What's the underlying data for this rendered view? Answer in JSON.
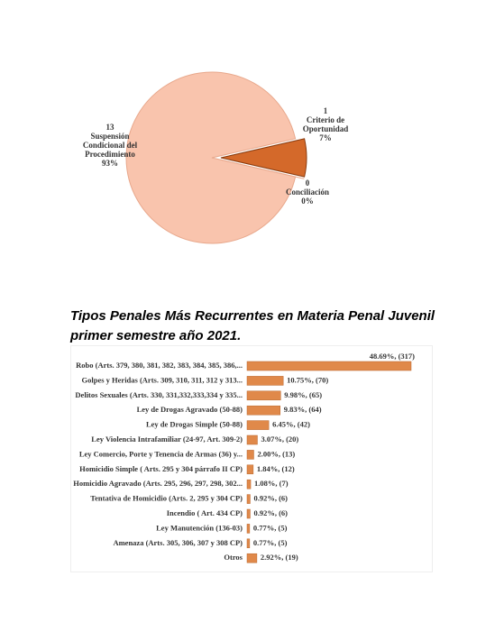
{
  "charts": [
    {
      "type": "pie",
      "categories": [
        "Suspensión Condicional del Procedimiento",
        "Criterio de Oportunidad",
        "Conciliación"
      ],
      "values": [
        13,
        1,
        0
      ],
      "percent_labels": [
        "93%",
        "7%",
        "0%"
      ],
      "colors": [
        "#f9c4ad",
        "#d4692a",
        "#b0b0b0"
      ]
    },
    {
      "type": "bar",
      "orientation": "horizontal",
      "title": "Tipos Penales Más Recurrentes en Materia Penal Juvenil primer semestre año 2021.",
      "categories": [
        "Robo (Arts. 379, 380, 381, 382, 383, 384, 385, 386,...",
        "Golpes y Heridas (Arts. 309, 310, 311, 312 y 313...",
        "Delitos Sexuales (Arts. 330, 331,332,333,334 y 335...",
        "Ley de Drogas Agravado (50-88)",
        "Ley de Drogas Simple (50-88)",
        "Ley Violencia Intrafamiliar (24-97, Art. 309-2)",
        "Ley Comercio, Porte y Tenencia de Armas (36) y...",
        "Homicidio Simple ( Arts. 295 y 304 párrafo II CP)",
        "Homicidio Agravado (Arts. 295, 296, 297, 298, 302...",
        "Tentativa de Homicidio (Arts. 2, 295 y 304 CP)",
        "Incendio ( Art. 434 CP)",
        "Ley Manutención (136-03)",
        "Amenaza (Arts. 305, 306, 307 y 308 CP)",
        "Otros"
      ],
      "values": [
        48.69,
        10.75,
        9.98,
        9.83,
        6.45,
        3.07,
        2.0,
        1.84,
        1.08,
        0.92,
        0.92,
        0.77,
        0.77,
        2.92
      ],
      "value_labels": [
        "48.69%, (317)",
        "10.75%, (70)",
        "9.98%, (65)",
        "9.83%, (64)",
        "6.45%, (42)",
        "3.07%, (20)",
        "2.00%, (13)",
        "1.84%, (12)",
        "1.08%, (7)",
        "0.92%, (6)",
        "0.92%, (6)",
        "0.77%, (5)",
        "0.77%, (5)",
        "2.92%, (19)"
      ],
      "color": "#e0894a"
    }
  ]
}
